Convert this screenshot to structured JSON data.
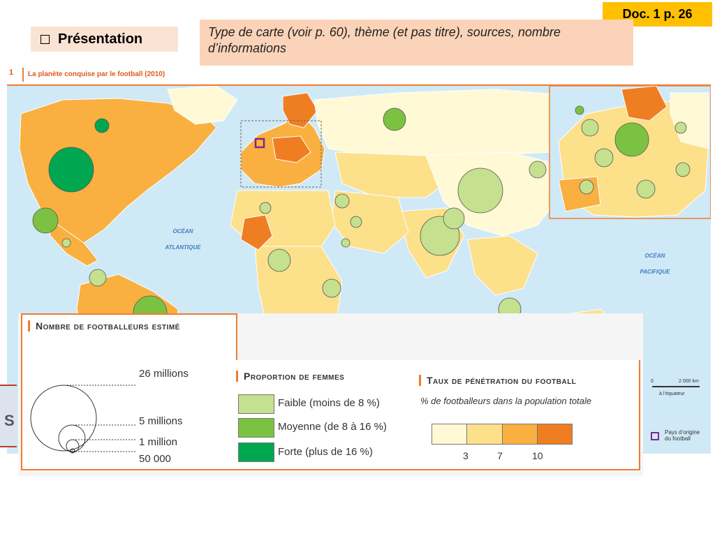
{
  "badge": {
    "label": "Doc. 1 p. 26"
  },
  "section": {
    "label": "Présentation"
  },
  "instruction": {
    "text": "Type de carte (voir p. 60), thème (et pas titre), sources, nombre d’informations"
  },
  "map": {
    "number": "1",
    "title": "La planète conquise par le football (2010)",
    "ocean_atlantic_line1": "OCÉAN",
    "ocean_atlantic_line2": "ATLANTIQUE",
    "ocean_pacific_line1": "OCÉAN",
    "ocean_pacific_line2": "PACIFIQUE",
    "scale": {
      "zero": "0",
      "length": "2 000 km",
      "note": "à l’équateur"
    },
    "origin_label_line1": "Pays d’origine",
    "origin_label_line2": "du football",
    "colors": {
      "ocean": "#cfe9f7",
      "tier_lt3": "#fff9d6",
      "tier_3_7": "#fde08a",
      "tier_7_10": "#f9b040",
      "tier_gt10": "#ef7e22",
      "women_low": "#c5e08e",
      "women_mid": "#7cc242",
      "women_high": "#00a650"
    }
  },
  "legend": {
    "size": {
      "title": "Nombre de footballeurs estimé",
      "items": [
        "26 millions",
        "5 millions",
        "1 million",
        "50 000"
      ]
    },
    "women": {
      "title": "Proportion de femmes",
      "items": [
        {
          "label": "Faible (moins de 8 %)",
          "color": "#c5e08e"
        },
        {
          "label": "Moyenne (de 8 à 16 %)",
          "color": "#7cc242"
        },
        {
          "label": "Forte (plus de 16 %)",
          "color": "#00a650"
        }
      ]
    },
    "rate": {
      "title": "Taux de pénétration du football",
      "subtitle": "% de footballeurs dans la population totale",
      "ticks": [
        "3",
        "7",
        "10"
      ],
      "colors": [
        "#fff9d6",
        "#fde08a",
        "#f9b040",
        "#ef7e22"
      ]
    }
  },
  "side_tab": {
    "glyph": "S"
  }
}
